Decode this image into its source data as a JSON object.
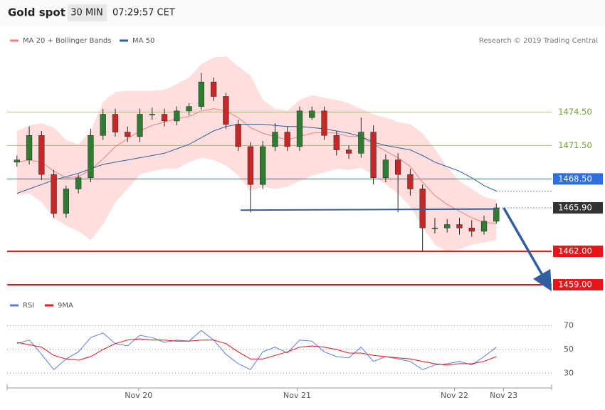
{
  "chart_data": {
    "type": "candlestick",
    "title": "Gold spot",
    "timeframe": "30 MIN",
    "time": "07:29:57 CET",
    "credit": "Research © 2019 Trading Central",
    "x": [
      0,
      1,
      2,
      3,
      4,
      5,
      6,
      7,
      8,
      9,
      10,
      11,
      12,
      13,
      14,
      15,
      16,
      17,
      18,
      19,
      20,
      21,
      22,
      23,
      24,
      25,
      26,
      27,
      28,
      29,
      30,
      31,
      32,
      33,
      34,
      35,
      36,
      37,
      38,
      39
    ],
    "xlim": [
      -0.8,
      43.5
    ],
    "xticks": [
      {
        "value": 9.9,
        "label": "Nov 20"
      },
      {
        "value": 22.8,
        "label": "Nov 21"
      },
      {
        "value": 35.6,
        "label": "Nov 22"
      },
      {
        "value": 39.6,
        "label": "Nov 23"
      }
    ],
    "ylim": [
      1458.3,
      1482.0
    ],
    "up_color": "#2e7d32",
    "down_color": "#c62828",
    "open": [
      1470.0,
      1470.2,
      1472.4,
      1468.9,
      1465.4,
      1467.6,
      1468.6,
      1472.4,
      1474.3,
      1472.7,
      1472.3,
      1474.3,
      1474.3,
      1473.7,
      1474.6,
      1475.0,
      1477.2,
      1475.9,
      1473.4,
      1471.4,
      1468.0,
      1471.4,
      1472.7,
      1471.4,
      1474.0,
      1474.6,
      1472.4,
      1471.1,
      1470.8,
      1472.7,
      1468.6,
      1470.2,
      1468.9,
      1467.6,
      1464.1,
      1464.1,
      1464.4,
      1464.1,
      1463.8,
      1464.7
    ],
    "high": [
      1470.6,
      1473.2,
      1472.8,
      1469.3,
      1467.9,
      1468.9,
      1473.0,
      1474.8,
      1474.8,
      1473.2,
      1474.8,
      1474.9,
      1474.8,
      1475.0,
      1475.3,
      1478.0,
      1477.6,
      1476.2,
      1473.8,
      1471.8,
      1471.9,
      1473.5,
      1473.2,
      1475.0,
      1475.0,
      1475.0,
      1472.8,
      1471.5,
      1474.0,
      1473.3,
      1470.7,
      1470.8,
      1469.4,
      1468.0,
      1465.0,
      1464.9,
      1465.0,
      1464.8,
      1465.2,
      1466.3
    ],
    "low": [
      1469.6,
      1469.8,
      1468.4,
      1465.0,
      1465.0,
      1467.2,
      1468.2,
      1472.0,
      1472.3,
      1471.8,
      1471.8,
      1473.8,
      1473.2,
      1473.3,
      1474.2,
      1474.7,
      1475.5,
      1473.0,
      1471.0,
      1465.5,
      1467.6,
      1471.0,
      1471.0,
      1471.0,
      1473.8,
      1472.0,
      1470.6,
      1470.3,
      1470.4,
      1468.0,
      1468.2,
      1465.5,
      1467.0,
      1462.0,
      1463.6,
      1463.7,
      1463.5,
      1463.3,
      1463.5,
      1464.5
    ],
    "close": [
      1470.2,
      1472.4,
      1468.9,
      1465.4,
      1467.6,
      1468.6,
      1472.4,
      1474.3,
      1472.7,
      1472.3,
      1474.3,
      1474.3,
      1473.7,
      1474.6,
      1475.0,
      1477.2,
      1475.9,
      1473.4,
      1471.4,
      1468.0,
      1471.4,
      1472.7,
      1471.4,
      1474.6,
      1474.6,
      1472.4,
      1471.1,
      1470.8,
      1472.7,
      1468.6,
      1470.2,
      1468.9,
      1467.6,
      1464.1,
      1464.1,
      1464.4,
      1464.1,
      1463.8,
      1464.7,
      1465.9
    ],
    "series": [
      {
        "name": "MA 20 + Bollinger Bands",
        "color": "#f08080",
        "band_color": "#ffdede",
        "values": [
          1470.0,
          1470.2,
          1470.0,
          1469.2,
          1468.6,
          1468.7,
          1469.3,
          1470.3,
          1471.4,
          1472.1,
          1472.8,
          1473.3,
          1473.6,
          1473.9,
          1474.1,
          1474.6,
          1474.8,
          1474.6,
          1474.0,
          1473.1,
          1472.6,
          1472.3,
          1472.0,
          1472.3,
          1472.6,
          1472.7,
          1472.6,
          1472.3,
          1472.3,
          1471.6,
          1471.0,
          1470.4,
          1469.6,
          1468.2,
          1467.0,
          1466.2,
          1465.6,
          1465.0,
          1464.6,
          1464.5
        ],
        "upper": [
          1472.8,
          1473.3,
          1473.5,
          1473.1,
          1472.0,
          1471.6,
          1472.8,
          1475.4,
          1476.3,
          1476.4,
          1476.4,
          1476.4,
          1476.5,
          1477.0,
          1477.6,
          1478.8,
          1479.4,
          1479.5,
          1478.6,
          1477.8,
          1475.6,
          1474.8,
          1474.6,
          1475.6,
          1476.0,
          1475.8,
          1475.6,
          1475.3,
          1474.8,
          1474.3,
          1474.0,
          1473.6,
          1473.4,
          1472.6,
          1471.2,
          1469.6,
          1468.3,
          1467.6,
          1466.9,
          1466.6
        ],
        "lower": [
          1467.0,
          1467.2,
          1466.4,
          1465.0,
          1464.3,
          1463.8,
          1463.0,
          1464.4,
          1466.4,
          1467.6,
          1468.9,
          1469.2,
          1469.4,
          1469.4,
          1470.0,
          1470.4,
          1470.2,
          1469.7,
          1468.8,
          1467.4,
          1467.8,
          1467.6,
          1467.8,
          1468.3,
          1468.8,
          1469.1,
          1469.4,
          1469.3,
          1469.5,
          1468.8,
          1468.0,
          1467.2,
          1466.0,
          1464.2,
          1462.6,
          1462.0,
          1462.2,
          1462.6,
          1462.8,
          1463.0
        ]
      },
      {
        "name": "MA 50",
        "color": "#2f5f9f",
        "values": [
          1467.2,
          1467.6,
          1468.0,
          1468.4,
          1468.7,
          1469.0,
          1469.4,
          1469.8,
          1470.0,
          1470.2,
          1470.4,
          1470.6,
          1470.8,
          1471.2,
          1471.6,
          1472.2,
          1472.8,
          1473.2,
          1473.4,
          1473.4,
          1473.4,
          1473.3,
          1473.2,
          1473.2,
          1473.1,
          1473.0,
          1472.8,
          1472.6,
          1472.3,
          1471.8,
          1471.5,
          1471.3,
          1471.1,
          1470.6,
          1470.0,
          1469.6,
          1469.2,
          1468.6,
          1467.9,
          1467.4
        ]
      }
    ],
    "levels": [
      {
        "value": 1474.5,
        "label": "1474.50",
        "color": "#6aa52a",
        "tag": false
      },
      {
        "value": 1471.5,
        "label": "1471.50",
        "color": "#6aa52a",
        "tag": false
      },
      {
        "value": 1468.5,
        "label": "1468.50",
        "color": "#2f6fe0",
        "tag": true
      },
      {
        "value": 1465.9,
        "label": "1465.90",
        "color": "#333333",
        "tag": true
      },
      {
        "value": 1462.0,
        "label": "1462.00",
        "color": "#e8141a",
        "tag": true
      },
      {
        "value": 1459.0,
        "label": "1459.00",
        "color": "#e8141a",
        "tag": true
      }
    ],
    "support": {
      "x": [
        18.2,
        39.0
      ],
      "values": [
        1465.7,
        1465.8
      ],
      "color": "#2f5f9f"
    },
    "forecast": {
      "x": [
        39.6,
        43.2
      ],
      "values": [
        1465.9,
        1459.0
      ],
      "color": "#2f5f9f"
    },
    "rsi": {
      "ylim": [
        20,
        80
      ],
      "yticks": [
        30,
        50,
        70
      ],
      "series": [
        {
          "name": "RSI",
          "color": "#5b7fd6",
          "values": [
            55,
            58,
            46,
            33,
            42,
            48,
            60,
            64,
            55,
            53,
            62,
            60,
            56,
            58,
            57,
            66,
            58,
            46,
            38,
            33,
            48,
            52,
            47,
            58,
            57,
            48,
            44,
            43,
            52,
            40,
            44,
            42,
            40,
            33,
            37,
            38,
            40,
            37,
            44,
            52
          ]
        },
        {
          "name": "9MA",
          "color": "#e8141a",
          "values": [
            56,
            54,
            52,
            45,
            42,
            41,
            44,
            50,
            55,
            58,
            59,
            58,
            58,
            57,
            57,
            58,
            58,
            55,
            48,
            42,
            42,
            45,
            48,
            52,
            53,
            52,
            50,
            47,
            47,
            45,
            44,
            43,
            42,
            40,
            38,
            37,
            38,
            38,
            40,
            44
          ]
        }
      ]
    }
  }
}
